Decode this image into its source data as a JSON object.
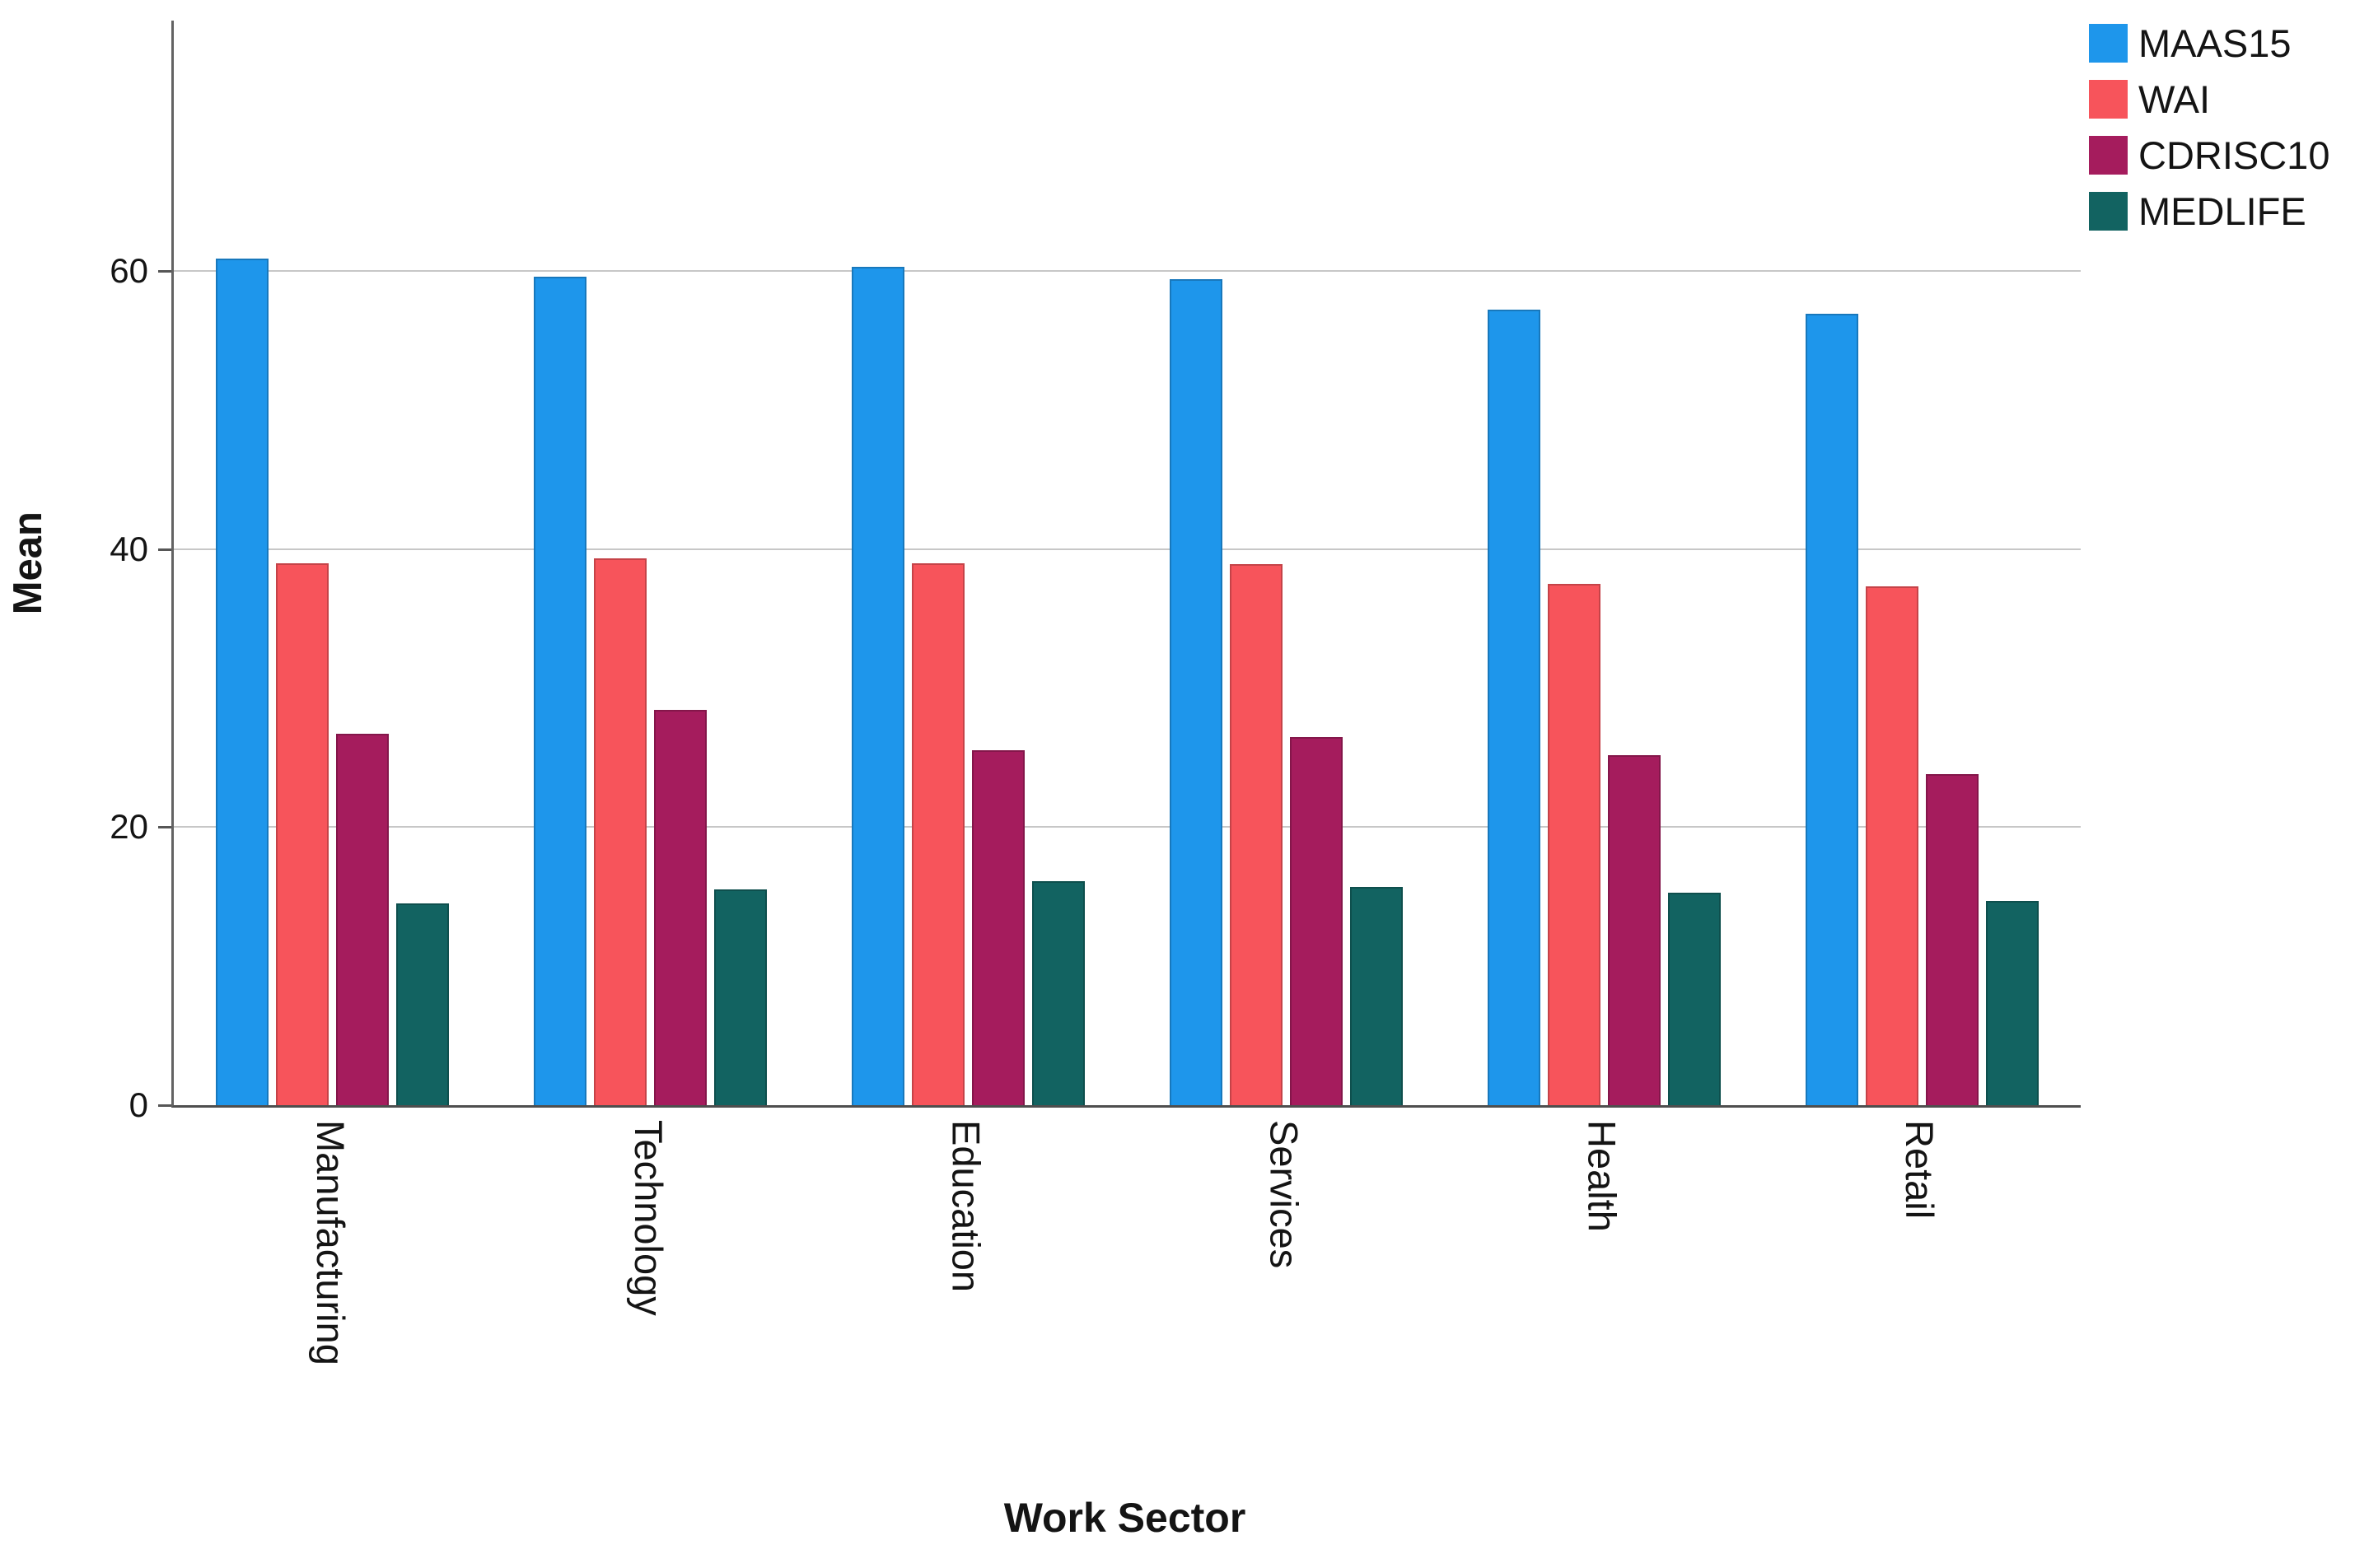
{
  "chart_data": {
    "type": "bar",
    "title": "",
    "xlabel": "Work Sector",
    "ylabel": "Mean",
    "categories": [
      "Manufacturing",
      "Technology",
      "Education",
      "Services",
      "Health",
      "Retail"
    ],
    "series": [
      {
        "name": "MAAS15",
        "color": "#1E96EB",
        "values": [
          60.9,
          59.6,
          60.3,
          59.4,
          57.2,
          56.9
        ]
      },
      {
        "name": "WAI",
        "color": "#F7545B",
        "values": [
          39.0,
          39.3,
          39.0,
          38.9,
          37.5,
          37.3
        ]
      },
      {
        "name": "CDRISC10",
        "color": "#A51C5D",
        "values": [
          26.7,
          28.4,
          25.5,
          26.5,
          25.2,
          23.8
        ]
      },
      {
        "name": "MEDLIFE",
        "color": "#126361",
        "values": [
          14.5,
          15.5,
          16.1,
          15.7,
          15.3,
          14.7
        ]
      }
    ],
    "yticks": [
      0,
      20,
      40,
      60
    ],
    "ylim": [
      0,
      78
    ],
    "grid": true,
    "legend_position": "top-right",
    "grid_color": "#c7c7c7",
    "axis_color": "#565656",
    "text_color": "#141414"
  }
}
